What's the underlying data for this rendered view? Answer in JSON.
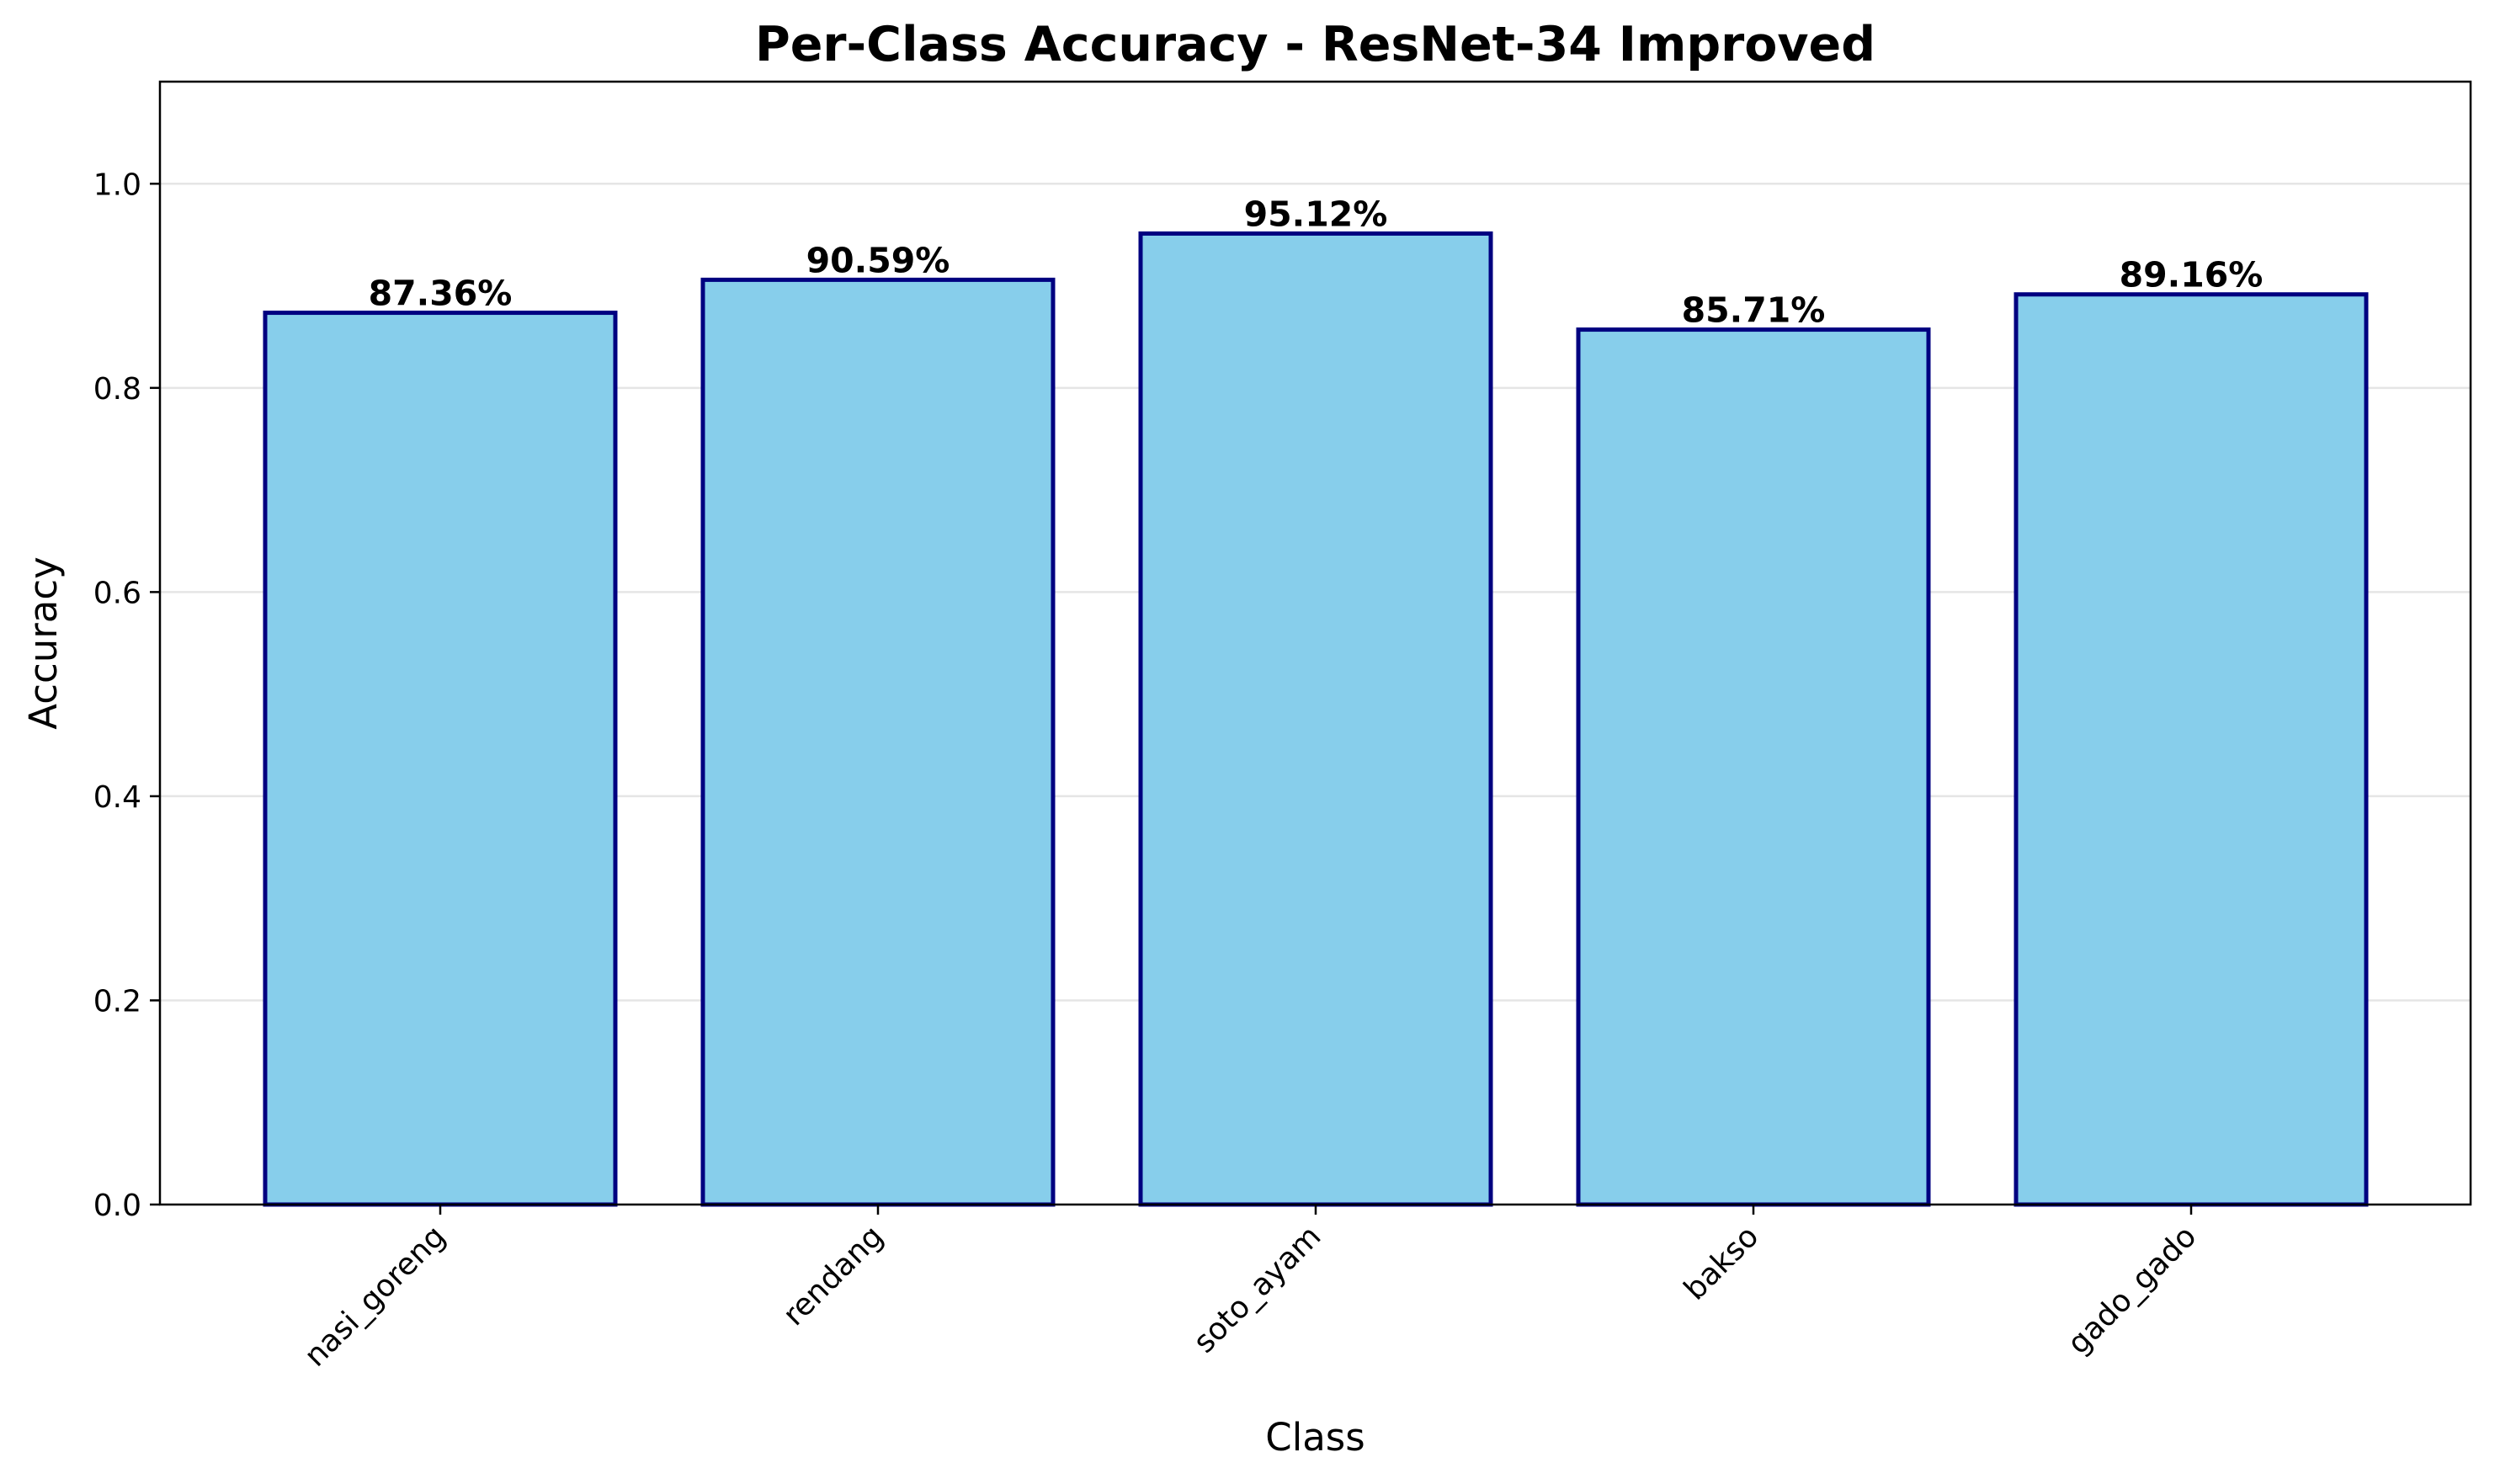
{
  "chart_data": {
    "type": "bar",
    "title": "Per-Class Accuracy - ResNet-34 Improved",
    "xlabel": "Class",
    "ylabel": "Accuracy",
    "categories": [
      "nasi_goreng",
      "rendang",
      "soto_ayam",
      "bakso",
      "gado_gado"
    ],
    "values": [
      0.8736,
      0.9059,
      0.9512,
      0.8571,
      0.8916
    ],
    "value_labels": [
      "87.36%",
      "90.59%",
      "95.12%",
      "85.71%",
      "89.16%"
    ],
    "ylim": [
      0,
      1.1
    ],
    "yticks": [
      0.0,
      0.2,
      0.4,
      0.6,
      0.8,
      1.0
    ],
    "ytick_labels": [
      "0.0",
      "0.2",
      "0.4",
      "0.6",
      "0.8",
      "1.0"
    ],
    "grid": "y-axis, light",
    "legend": "none",
    "colors": {
      "bar_fill": "#87CEEB",
      "bar_edge": "#000080",
      "grid": "#e5e5e5",
      "axis": "#000000"
    }
  }
}
